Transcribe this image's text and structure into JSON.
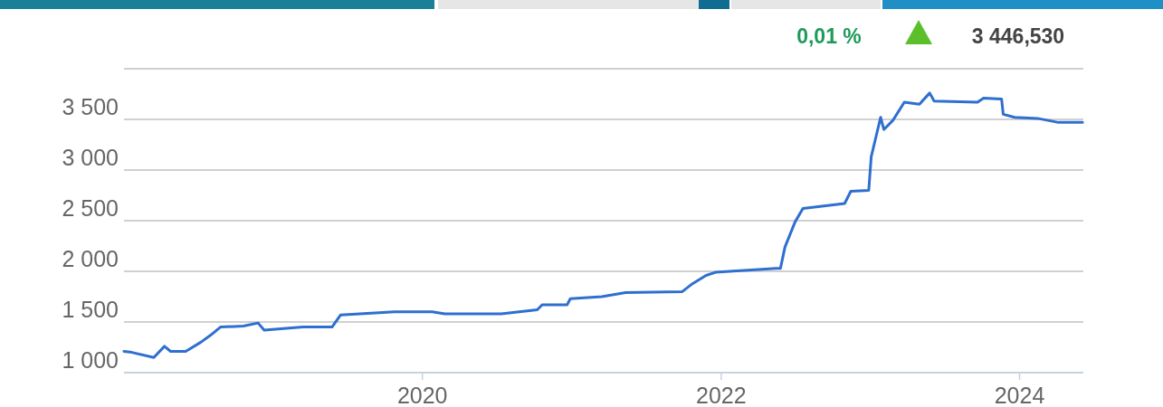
{
  "chart_data": {
    "type": "line",
    "annotations": [
      "0,01 %",
      "3 446,530"
    ],
    "x": [
      "2018-01-01",
      "2018-01-20",
      "2018-03-15",
      "2018-04-10",
      "2018-04-25",
      "2018-06-01",
      "2018-07-08",
      "2018-08-01",
      "2018-08-25",
      "2018-10-20",
      "2018-11-25",
      "2018-12-10",
      "2019-03-15",
      "2019-05-25",
      "2019-06-15",
      "2019-10-25",
      "2020-01-25",
      "2020-02-25",
      "2020-07-12",
      "2020-10-08",
      "2020-10-20",
      "2020-12-20",
      "2020-12-28",
      "2021-03-15",
      "2021-05-12",
      "2021-09-28",
      "2021-10-20",
      "2021-11-25",
      "2021-12-18",
      "2022-05-15",
      "2022-05-26",
      "2022-06-06",
      "2022-07-01",
      "2022-07-20",
      "2022-10-30",
      "2022-11-14",
      "2022-12-28",
      "2023-01-03",
      "2023-01-26",
      "2023-02-03",
      "2023-02-25",
      "2023-03-25",
      "2023-05-01",
      "2023-05-26",
      "2023-06-06",
      "2023-09-20",
      "2023-10-05",
      "2023-11-18",
      "2023-11-22",
      "2023-12-20",
      "2024-02-14",
      "2024-04-05",
      "2024-06-03"
    ],
    "series": [
      {
        "color": "#2e6fcf",
        "values": [
          1210,
          1200,
          1150,
          1260,
          1210,
          1210,
          1300,
          1370,
          1450,
          1460,
          1490,
          1420,
          1450,
          1450,
          1570,
          1600,
          1600,
          1580,
          1580,
          1620,
          1670,
          1670,
          1730,
          1750,
          1790,
          1800,
          1870,
          1960,
          1990,
          2030,
          2030,
          2240,
          2490,
          2620,
          2670,
          2790,
          2800,
          3130,
          3520,
          3400,
          3490,
          3670,
          3650,
          3760,
          3680,
          3670,
          3710,
          3700,
          3550,
          3520,
          3510,
          3470,
          3470
        ]
      }
    ],
    "xlim": [
      "2018-01-01",
      "2024-06-05"
    ],
    "xticks": [
      "2020",
      "2022",
      "2024"
    ],
    "ylim": [
      1000,
      4000
    ],
    "yticks": [
      {
        "value": 1000,
        "label": "1 000"
      },
      {
        "value": 1500,
        "label": "1 500"
      },
      {
        "value": 2000,
        "label": "2 000"
      },
      {
        "value": 2500,
        "label": "2 500"
      },
      {
        "value": 3000,
        "label": "3 000"
      },
      {
        "value": 3500,
        "label": "3 500"
      },
      {
        "value": 4000,
        "label": null
      }
    ],
    "grid": "y",
    "marker": "none",
    "line_style": "solid"
  }
}
